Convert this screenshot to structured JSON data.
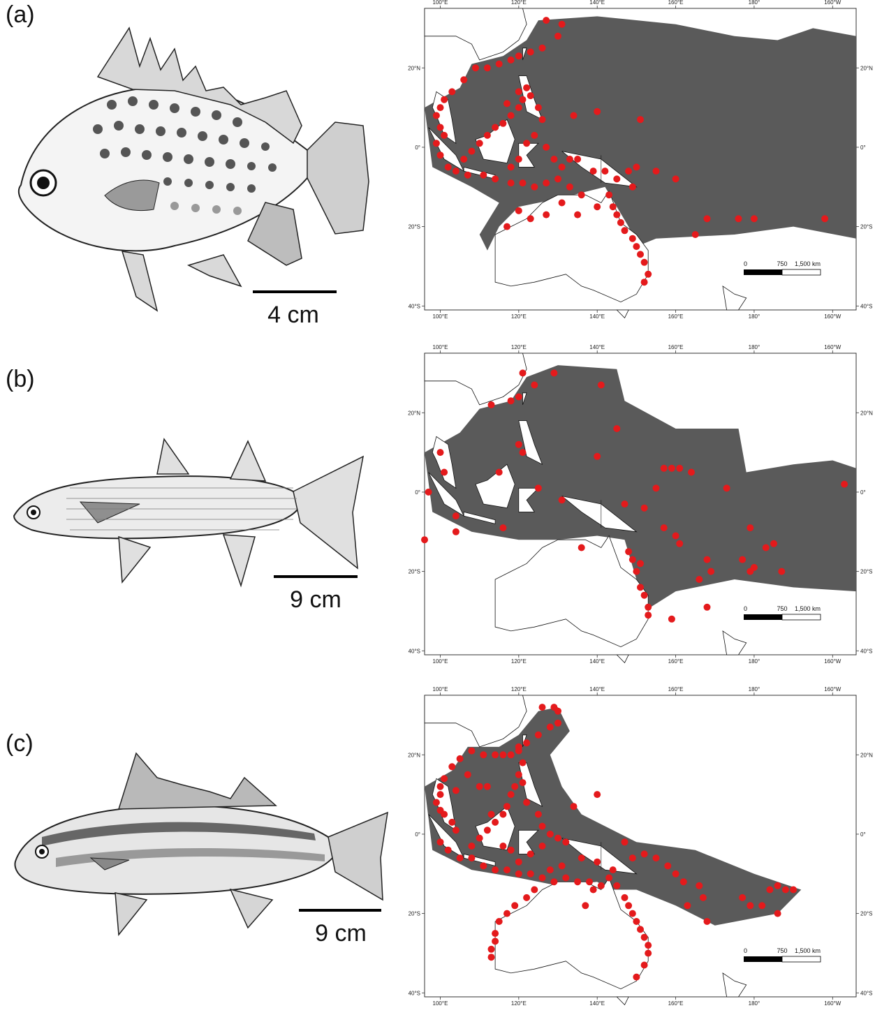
{
  "panels": [
    {
      "label": "(a)",
      "scale_text": "4 cm",
      "fish_icon": "spotted-deep-bodied-fish-illustration",
      "records": [
        [
          127,
          32
        ],
        [
          131,
          31
        ],
        [
          130,
          28
        ],
        [
          126,
          25
        ],
        [
          123,
          24
        ],
        [
          120,
          23
        ],
        [
          118,
          22
        ],
        [
          115,
          21
        ],
        [
          112,
          20
        ],
        [
          109,
          20
        ],
        [
          106,
          17
        ],
        [
          103,
          14
        ],
        [
          101,
          12
        ],
        [
          100,
          10
        ],
        [
          99,
          8
        ],
        [
          100,
          5
        ],
        [
          101,
          3
        ],
        [
          99,
          1
        ],
        [
          100,
          -2
        ],
        [
          102,
          -5
        ],
        [
          104,
          -6
        ],
        [
          107,
          -7
        ],
        [
          111,
          -7
        ],
        [
          114,
          -8
        ],
        [
          118,
          -9
        ],
        [
          121,
          -9
        ],
        [
          124,
          -10
        ],
        [
          127,
          -9
        ],
        [
          130,
          -8
        ],
        [
          133,
          -10
        ],
        [
          136,
          -12
        ],
        [
          140,
          -15
        ],
        [
          143,
          -12
        ],
        [
          144,
          -15
        ],
        [
          145,
          -17
        ],
        [
          146,
          -19
        ],
        [
          147,
          -21
        ],
        [
          149,
          -23
        ],
        [
          150,
          -25
        ],
        [
          151,
          -27
        ],
        [
          152,
          -29
        ],
        [
          153,
          -32
        ],
        [
          152,
          -34
        ],
        [
          120,
          -16
        ],
        [
          123,
          -18
        ],
        [
          117,
          -20
        ],
        [
          127,
          -17
        ],
        [
          131,
          -14
        ],
        [
          135,
          -17
        ],
        [
          122,
          15
        ],
        [
          121,
          12
        ],
        [
          120,
          10
        ],
        [
          118,
          8
        ],
        [
          116,
          6
        ],
        [
          114,
          5
        ],
        [
          112,
          3
        ],
        [
          110,
          1
        ],
        [
          108,
          -1
        ],
        [
          106,
          -3
        ],
        [
          117,
          11
        ],
        [
          120,
          14
        ],
        [
          123,
          13
        ],
        [
          125,
          10
        ],
        [
          126,
          7
        ],
        [
          124,
          3
        ],
        [
          122,
          1
        ],
        [
          120,
          -3
        ],
        [
          118,
          -5
        ],
        [
          127,
          0
        ],
        [
          129,
          -3
        ],
        [
          131,
          -5
        ],
        [
          133,
          -3
        ],
        [
          135,
          -3
        ],
        [
          134,
          8
        ],
        [
          140,
          9
        ],
        [
          151,
          7
        ],
        [
          139,
          -6
        ],
        [
          142,
          -6
        ],
        [
          145,
          -8
        ],
        [
          148,
          -6
        ],
        [
          150,
          -5
        ],
        [
          149,
          -10
        ],
        [
          155,
          -6
        ],
        [
          160,
          -8
        ],
        [
          168,
          -18
        ],
        [
          176,
          -18
        ],
        [
          180,
          -18
        ],
        [
          198,
          -18
        ],
        [
          165,
          -22
        ]
      ]
    },
    {
      "label": "(b)",
      "scale_text": "9 cm",
      "fish_icon": "mullet-fish-illustration",
      "records": [
        [
          129,
          30
        ],
        [
          121,
          30
        ],
        [
          124,
          27
        ],
        [
          120,
          24
        ],
        [
          118,
          23
        ],
        [
          113,
          22
        ],
        [
          141,
          27
        ],
        [
          145,
          16
        ],
        [
          120,
          12
        ],
        [
          121,
          10
        ],
        [
          100,
          10
        ],
        [
          101,
          5
        ],
        [
          115,
          5
        ],
        [
          97,
          0
        ],
        [
          96,
          -12
        ],
        [
          104,
          -10
        ],
        [
          104,
          -6
        ],
        [
          116,
          -9
        ],
        [
          125,
          1
        ],
        [
          131,
          -2
        ],
        [
          140,
          9
        ],
        [
          147,
          -3
        ],
        [
          152,
          -4
        ],
        [
          157,
          6
        ],
        [
          159,
          6
        ],
        [
          161,
          6
        ],
        [
          164,
          5
        ],
        [
          155,
          1
        ],
        [
          173,
          1
        ],
        [
          203,
          2
        ],
        [
          157,
          -9
        ],
        [
          160,
          -11
        ],
        [
          161,
          -13
        ],
        [
          179,
          -9
        ],
        [
          168,
          -17
        ],
        [
          169,
          -20
        ],
        [
          166,
          -22
        ],
        [
          177,
          -17
        ],
        [
          179,
          -20
        ],
        [
          180,
          -19
        ],
        [
          183,
          -14
        ],
        [
          185,
          -13
        ],
        [
          187,
          -20
        ],
        [
          151,
          -18
        ],
        [
          148,
          -15
        ],
        [
          149,
          -17
        ],
        [
          150,
          -20
        ],
        [
          151,
          -24
        ],
        [
          152,
          -26
        ],
        [
          153,
          -29
        ],
        [
          153,
          -31
        ],
        [
          159,
          -32
        ],
        [
          168,
          -29
        ],
        [
          136,
          -14
        ]
      ]
    },
    {
      "label": "(c)",
      "scale_text": "9 cm",
      "fish_icon": "striped-grunt-fish-illustration",
      "records": [
        [
          126,
          32
        ],
        [
          129,
          32
        ],
        [
          130,
          31
        ],
        [
          130,
          28
        ],
        [
          128,
          27
        ],
        [
          125,
          25
        ],
        [
          122,
          23
        ],
        [
          120,
          22
        ],
        [
          118,
          20
        ],
        [
          116,
          20
        ],
        [
          114,
          20
        ],
        [
          111,
          20
        ],
        [
          108,
          21
        ],
        [
          105,
          19
        ],
        [
          103,
          17
        ],
        [
          101,
          14
        ],
        [
          100,
          12
        ],
        [
          100,
          10
        ],
        [
          99,
          8
        ],
        [
          100,
          6
        ],
        [
          101,
          5
        ],
        [
          103,
          3
        ],
        [
          104,
          1
        ],
        [
          100,
          -2
        ],
        [
          102,
          -4
        ],
        [
          105,
          -6
        ],
        [
          108,
          -6
        ],
        [
          111,
          -8
        ],
        [
          114,
          -9
        ],
        [
          117,
          -9
        ],
        [
          120,
          -10
        ],
        [
          123,
          -10
        ],
        [
          126,
          -11
        ],
        [
          129,
          -12
        ],
        [
          132,
          -11
        ],
        [
          135,
          -12
        ],
        [
          138,
          -12
        ],
        [
          141,
          -13
        ],
        [
          143,
          -11
        ],
        [
          145,
          -13
        ],
        [
          147,
          -16
        ],
        [
          148,
          -18
        ],
        [
          149,
          -20
        ],
        [
          150,
          -22
        ],
        [
          151,
          -24
        ],
        [
          152,
          -26
        ],
        [
          153,
          -28
        ],
        [
          153,
          -30
        ],
        [
          152,
          -33
        ],
        [
          150,
          -36
        ],
        [
          124,
          -14
        ],
        [
          122,
          -16
        ],
        [
          119,
          -18
        ],
        [
          117,
          -20
        ],
        [
          115,
          -22
        ],
        [
          114,
          -25
        ],
        [
          114,
          -27
        ],
        [
          113,
          -29
        ],
        [
          113,
          -31
        ],
        [
          120,
          21
        ],
        [
          121,
          18
        ],
        [
          120,
          15
        ],
        [
          121,
          13
        ],
        [
          119,
          12
        ],
        [
          118,
          10
        ],
        [
          117,
          7
        ],
        [
          116,
          5
        ],
        [
          114,
          3
        ],
        [
          112,
          1
        ],
        [
          110,
          -1
        ],
        [
          108,
          -3
        ],
        [
          112,
          12
        ],
        [
          110,
          12
        ],
        [
          107,
          15
        ],
        [
          104,
          11
        ],
        [
          113,
          5
        ],
        [
          122,
          8
        ],
        [
          125,
          5
        ],
        [
          126,
          2
        ],
        [
          128,
          0
        ],
        [
          130,
          -1
        ],
        [
          132,
          -2
        ],
        [
          126,
          -3
        ],
        [
          123,
          -5
        ],
        [
          120,
          -7
        ],
        [
          118,
          -4
        ],
        [
          116,
          -3
        ],
        [
          134,
          7
        ],
        [
          140,
          10
        ],
        [
          147,
          -2
        ],
        [
          149,
          -6
        ],
        [
          152,
          -5
        ],
        [
          155,
          -6
        ],
        [
          158,
          -8
        ],
        [
          160,
          -10
        ],
        [
          162,
          -12
        ],
        [
          166,
          -13
        ],
        [
          167,
          -16
        ],
        [
          168,
          -22
        ],
        [
          177,
          -16
        ],
        [
          179,
          -18
        ],
        [
          182,
          -18
        ],
        [
          184,
          -14
        ],
        [
          186,
          -13
        ],
        [
          188,
          -14
        ],
        [
          190,
          -14
        ],
        [
          186,
          -20
        ],
        [
          163,
          -18
        ],
        [
          136,
          -6
        ],
        [
          140,
          -7
        ],
        [
          144,
          -9
        ],
        [
          131,
          -8
        ],
        [
          128,
          -9
        ],
        [
          137,
          -18
        ],
        [
          139,
          -14
        ]
      ]
    }
  ],
  "map": {
    "lon_ticks": [
      "100°E",
      "120°E",
      "140°E",
      "160°E",
      "180°",
      "160°W"
    ],
    "lat_ticks": [
      "20°N",
      "0°",
      "20°S",
      "40°S"
    ],
    "scale_labels": [
      "0",
      "750",
      "1,500 km"
    ],
    "record_color": "#e41a1c",
    "range_color": "#5a5a5a",
    "land_color": "#ffffff",
    "coast_color": "#111111"
  }
}
